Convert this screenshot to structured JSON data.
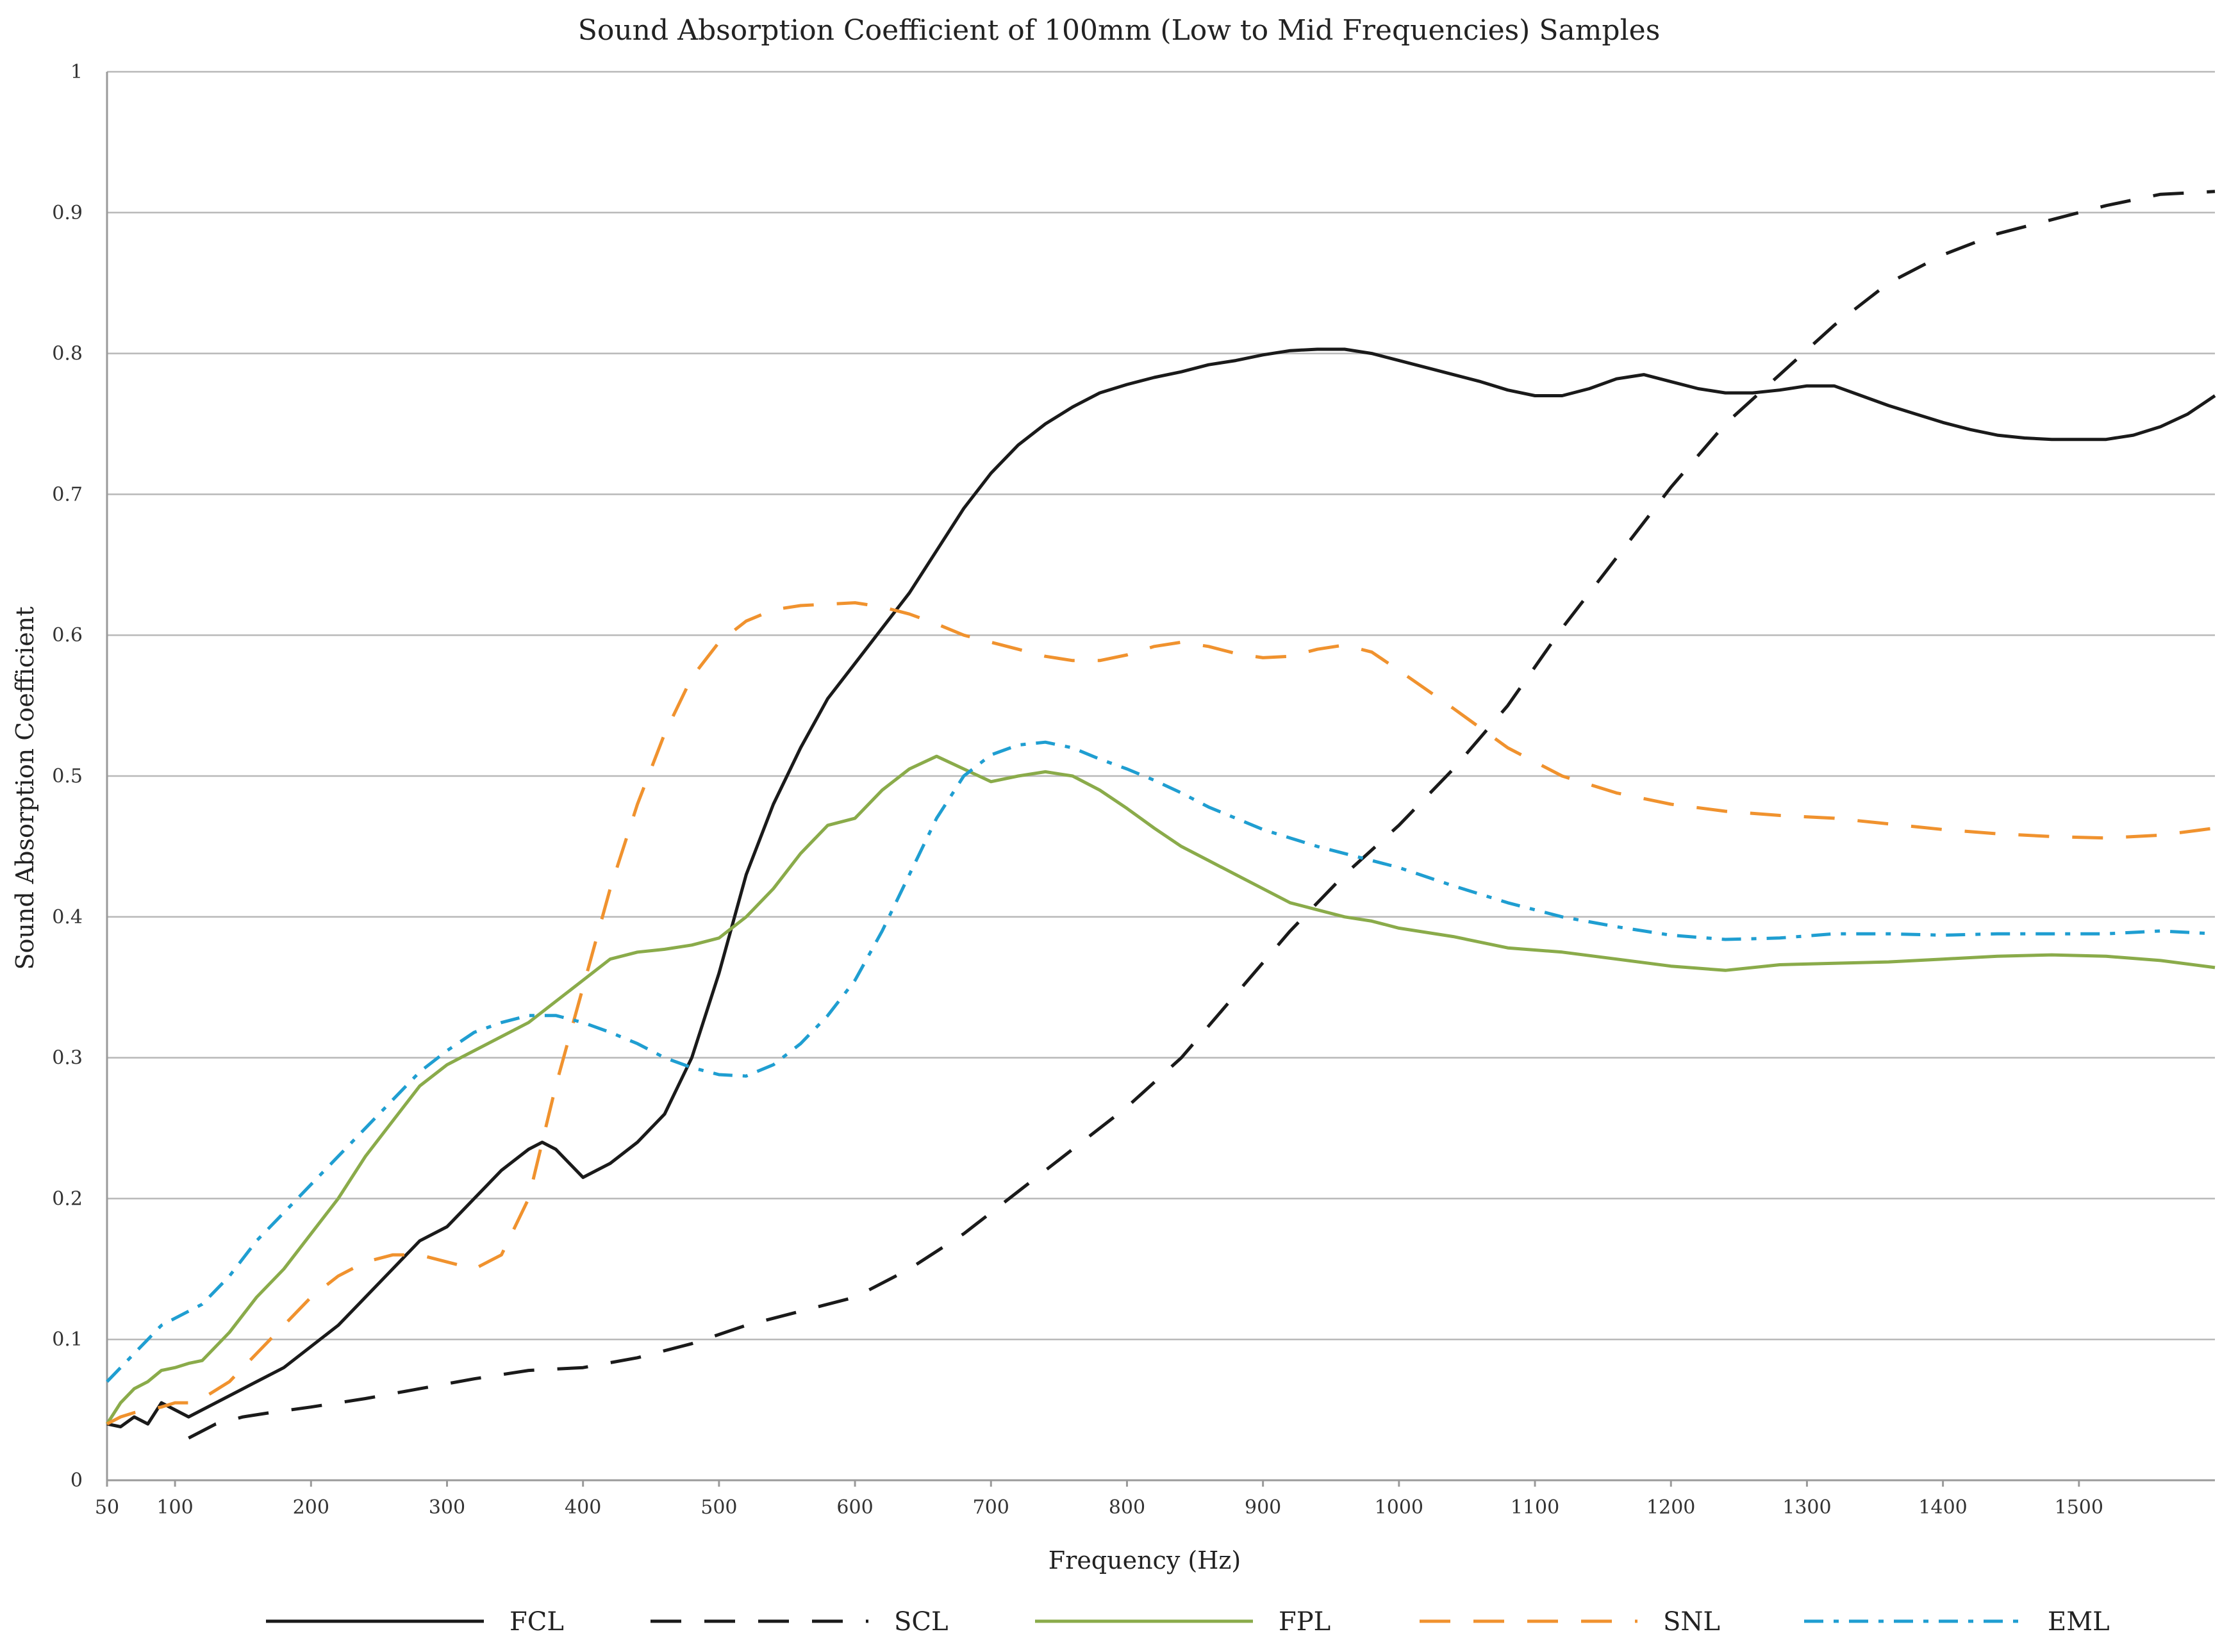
{
  "chart_data": {
    "type": "line",
    "title": "Sound Absorption Coefficient of 100mm (Low to Mid Frequencies) Samples",
    "xlabel": "Frequency (Hz)",
    "ylabel": "Sound Absorption Coefficient",
    "xlim": [
      50,
      1600
    ],
    "ylim": [
      0,
      1
    ],
    "x_ticks": [
      50,
      100,
      200,
      300,
      400,
      500,
      600,
      700,
      800,
      900,
      1000,
      1100,
      1200,
      1300,
      1400,
      1500
    ],
    "y_ticks": [
      0,
      0.1,
      0.2,
      0.3,
      0.4,
      0.5,
      0.6,
      0.7,
      0.8,
      0.9,
      1
    ],
    "y_tick_labels": [
      "0",
      "0.1",
      "0.2",
      "0.3",
      "0.4",
      "0.5",
      "0.6",
      "0.7",
      "0.8",
      "0.9",
      "1"
    ],
    "grid": "horizontal",
    "legend_position": "bottom",
    "series": [
      {
        "name": "FCL",
        "color": "#1a1a1a",
        "dash": "solid",
        "x": [
          50,
          60,
          70,
          80,
          90,
          100,
          110,
          120,
          140,
          160,
          180,
          200,
          220,
          240,
          260,
          280,
          300,
          320,
          340,
          360,
          370,
          380,
          390,
          400,
          410,
          420,
          440,
          460,
          480,
          500,
          520,
          540,
          560,
          580,
          600,
          620,
          640,
          660,
          680,
          700,
          720,
          740,
          760,
          780,
          800,
          820,
          840,
          860,
          880,
          900,
          920,
          940,
          960,
          980,
          1000,
          1020,
          1040,
          1060,
          1080,
          1100,
          1120,
          1140,
          1160,
          1180,
          1200,
          1220,
          1240,
          1260,
          1280,
          1300,
          1320,
          1340,
          1360,
          1380,
          1400,
          1420,
          1440,
          1460,
          1480,
          1500,
          1520,
          1540,
          1560,
          1580,
          1600
        ],
        "y": [
          0.04,
          0.038,
          0.045,
          0.04,
          0.055,
          0.05,
          0.045,
          0.05,
          0.06,
          0.07,
          0.08,
          0.095,
          0.11,
          0.13,
          0.15,
          0.17,
          0.18,
          0.2,
          0.22,
          0.235,
          0.24,
          0.235,
          0.225,
          0.215,
          0.22,
          0.225,
          0.24,
          0.26,
          0.3,
          0.36,
          0.43,
          0.48,
          0.52,
          0.555,
          0.58,
          0.605,
          0.63,
          0.66,
          0.69,
          0.715,
          0.735,
          0.75,
          0.762,
          0.772,
          0.778,
          0.783,
          0.787,
          0.792,
          0.795,
          0.799,
          0.802,
          0.803,
          0.803,
          0.8,
          0.795,
          0.79,
          0.785,
          0.78,
          0.774,
          0.77,
          0.77,
          0.775,
          0.782,
          0.785,
          0.78,
          0.775,
          0.772,
          0.772,
          0.774,
          0.777,
          0.777,
          0.77,
          0.763,
          0.757,
          0.751,
          0.746,
          0.742,
          0.74,
          0.739,
          0.739,
          0.739,
          0.742,
          0.748,
          0.757,
          0.77
        ]
      },
      {
        "name": "SCL",
        "color": "#1a1a1a",
        "dash": "long-dash",
        "x": [
          110,
          130,
          150,
          170,
          200,
          240,
          280,
          320,
          360,
          400,
          440,
          480,
          520,
          560,
          600,
          640,
          680,
          720,
          760,
          800,
          840,
          880,
          920,
          960,
          1000,
          1040,
          1080,
          1120,
          1160,
          1200,
          1240,
          1280,
          1320,
          1360,
          1400,
          1440,
          1480,
          1520,
          1560,
          1600
        ],
        "y": [
          0.03,
          0.04,
          0.045,
          0.048,
          0.052,
          0.058,
          0.065,
          0.072,
          0.078,
          0.08,
          0.087,
          0.097,
          0.11,
          0.12,
          0.13,
          0.15,
          0.175,
          0.205,
          0.235,
          0.265,
          0.3,
          0.345,
          0.39,
          0.43,
          0.465,
          0.505,
          0.55,
          0.605,
          0.655,
          0.705,
          0.75,
          0.785,
          0.82,
          0.85,
          0.87,
          0.885,
          0.895,
          0.905,
          0.913,
          0.915
        ]
      },
      {
        "name": "FPL",
        "color": "#8aab4a",
        "dash": "solid",
        "x": [
          50,
          60,
          70,
          80,
          90,
          100,
          110,
          120,
          140,
          160,
          180,
          200,
          220,
          240,
          260,
          280,
          300,
          320,
          340,
          360,
          380,
          400,
          420,
          440,
          460,
          480,
          500,
          520,
          540,
          560,
          580,
          600,
          620,
          640,
          660,
          680,
          700,
          720,
          740,
          760,
          780,
          800,
          820,
          840,
          860,
          880,
          900,
          920,
          940,
          960,
          980,
          1000,
          1040,
          1080,
          1120,
          1160,
          1200,
          1240,
          1280,
          1320,
          1360,
          1400,
          1440,
          1480,
          1520,
          1560,
          1600
        ],
        "y": [
          0.04,
          0.055,
          0.065,
          0.07,
          0.078,
          0.08,
          0.083,
          0.085,
          0.105,
          0.13,
          0.15,
          0.175,
          0.2,
          0.23,
          0.255,
          0.28,
          0.295,
          0.305,
          0.315,
          0.325,
          0.34,
          0.355,
          0.37,
          0.375,
          0.377,
          0.38,
          0.385,
          0.4,
          0.42,
          0.445,
          0.465,
          0.47,
          0.49,
          0.505,
          0.514,
          0.505,
          0.496,
          0.5,
          0.503,
          0.5,
          0.49,
          0.477,
          0.463,
          0.45,
          0.44,
          0.43,
          0.42,
          0.41,
          0.405,
          0.4,
          0.397,
          0.392,
          0.386,
          0.378,
          0.375,
          0.37,
          0.365,
          0.362,
          0.366,
          0.367,
          0.368,
          0.37,
          0.372,
          0.373,
          0.372,
          0.369,
          0.364
        ]
      },
      {
        "name": "SNL",
        "color": "#f0922e",
        "dash": "long-dash",
        "x": [
          50,
          60,
          70,
          80,
          90,
          100,
          110,
          120,
          140,
          160,
          180,
          200,
          220,
          240,
          260,
          280,
          300,
          320,
          340,
          360,
          380,
          400,
          420,
          440,
          460,
          480,
          500,
          520,
          540,
          560,
          580,
          600,
          620,
          640,
          660,
          680,
          700,
          720,
          740,
          760,
          780,
          800,
          820,
          840,
          860,
          880,
          900,
          920,
          940,
          960,
          980,
          1000,
          1040,
          1080,
          1120,
          1160,
          1200,
          1240,
          1280,
          1320,
          1360,
          1400,
          1440,
          1480,
          1520,
          1560,
          1600
        ],
        "y": [
          0.04,
          0.045,
          0.048,
          0.05,
          0.052,
          0.055,
          0.055,
          0.058,
          0.07,
          0.09,
          0.11,
          0.13,
          0.145,
          0.155,
          0.16,
          0.16,
          0.155,
          0.15,
          0.16,
          0.2,
          0.28,
          0.35,
          0.42,
          0.48,
          0.53,
          0.57,
          0.595,
          0.61,
          0.618,
          0.621,
          0.622,
          0.623,
          0.62,
          0.615,
          0.608,
          0.6,
          0.595,
          0.59,
          0.585,
          0.582,
          0.582,
          0.586,
          0.592,
          0.595,
          0.592,
          0.587,
          0.584,
          0.585,
          0.59,
          0.593,
          0.588,
          0.575,
          0.548,
          0.52,
          0.5,
          0.488,
          0.48,
          0.475,
          0.472,
          0.47,
          0.466,
          0.462,
          0.459,
          0.457,
          0.456,
          0.458,
          0.463
        ]
      },
      {
        "name": "EML",
        "color": "#1f9ed1",
        "dash": "dash-dot",
        "x": [
          50,
          60,
          70,
          80,
          90,
          100,
          110,
          120,
          140,
          160,
          180,
          200,
          220,
          240,
          260,
          280,
          300,
          320,
          340,
          360,
          380,
          400,
          420,
          440,
          460,
          480,
          500,
          520,
          540,
          560,
          580,
          600,
          620,
          640,
          660,
          680,
          700,
          720,
          740,
          760,
          780,
          800,
          820,
          840,
          860,
          880,
          900,
          920,
          940,
          960,
          980,
          1000,
          1040,
          1080,
          1120,
          1160,
          1200,
          1240,
          1280,
          1320,
          1360,
          1400,
          1440,
          1480,
          1520,
          1560,
          1600
        ],
        "y": [
          0.07,
          0.08,
          0.09,
          0.1,
          0.11,
          0.115,
          0.12,
          0.125,
          0.145,
          0.17,
          0.19,
          0.21,
          0.23,
          0.25,
          0.27,
          0.29,
          0.305,
          0.318,
          0.325,
          0.33,
          0.33,
          0.325,
          0.318,
          0.31,
          0.3,
          0.293,
          0.288,
          0.287,
          0.295,
          0.31,
          0.33,
          0.355,
          0.39,
          0.43,
          0.47,
          0.5,
          0.515,
          0.522,
          0.524,
          0.52,
          0.512,
          0.505,
          0.497,
          0.488,
          0.478,
          0.47,
          0.462,
          0.456,
          0.45,
          0.445,
          0.44,
          0.435,
          0.422,
          0.41,
          0.4,
          0.393,
          0.387,
          0.384,
          0.385,
          0.388,
          0.388,
          0.387,
          0.388,
          0.388,
          0.388,
          0.39,
          0.388
        ]
      }
    ]
  }
}
